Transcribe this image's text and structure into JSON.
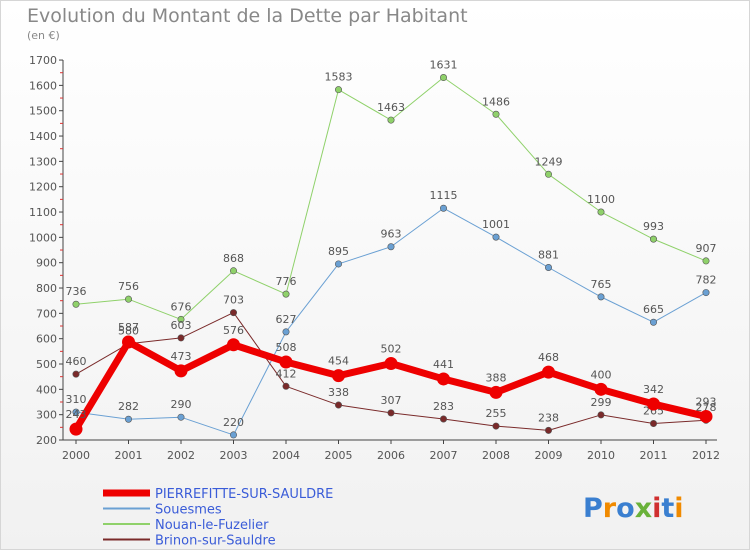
{
  "page": {
    "title": "Evolution du Montant de la Dette par Habitant",
    "subtitle": "(en €)"
  },
  "chart_data": {
    "type": "line",
    "title": "Evolution du Montant de la Dette par Habitant",
    "subtitle": "(en €)",
    "xlabel": "",
    "ylabel": "",
    "x": [
      "2000",
      "2001",
      "2002",
      "2003",
      "2004",
      "2005",
      "2006",
      "2007",
      "2008",
      "2009",
      "2010",
      "2011",
      "2012"
    ],
    "ylim": [
      200,
      1700
    ],
    "yticks": [
      200,
      300,
      400,
      500,
      600,
      700,
      800,
      900,
      1000,
      1100,
      1200,
      1300,
      1400,
      1500,
      1600,
      1700
    ],
    "grid": false,
    "legend": "bottom-left",
    "series": [
      {
        "name": "Nouan-le-Fuzelier",
        "color": "#8fd16a",
        "width": 1,
        "marker": 3.2,
        "values": [
          736,
          756,
          676,
          868,
          776,
          1583,
          1463,
          1631,
          1486,
          1249,
          1100,
          993,
          907
        ]
      },
      {
        "name": "Souesmes",
        "color": "#6aa0d3",
        "width": 1,
        "marker": 3.2,
        "values": [
          310,
          282,
          290,
          220,
          627,
          895,
          963,
          1115,
          1001,
          881,
          765,
          665,
          782
        ]
      },
      {
        "name": "Brinon-sur-Sauldre",
        "color": "#7a2a2a",
        "width": 1,
        "marker": 3.2,
        "values": [
          460,
          580,
          603,
          703,
          412,
          338,
          307,
          283,
          255,
          238,
          299,
          265,
          278
        ]
      },
      {
        "name": "PIERREFITTE-SUR-SAULDRE",
        "color": "#ee0000",
        "width": 7,
        "marker": 6.5,
        "values": [
          243,
          587,
          473,
          576,
          508,
          454,
          502,
          441,
          388,
          468,
          400,
          342,
          293
        ]
      }
    ],
    "legend_order": [
      "PIERREFITTE-SUR-SAULDRE",
      "Souesmes",
      "Nouan-le-Fuzelier",
      "Brinon-sur-Sauldre"
    ]
  },
  "logo": {
    "text": "Proxiti",
    "colors": [
      "#3a7fd0",
      "#f08a00",
      "#3a7fd0",
      "#6ab23a",
      "#d03030",
      "#3a7fd0",
      "#f08a00"
    ]
  }
}
